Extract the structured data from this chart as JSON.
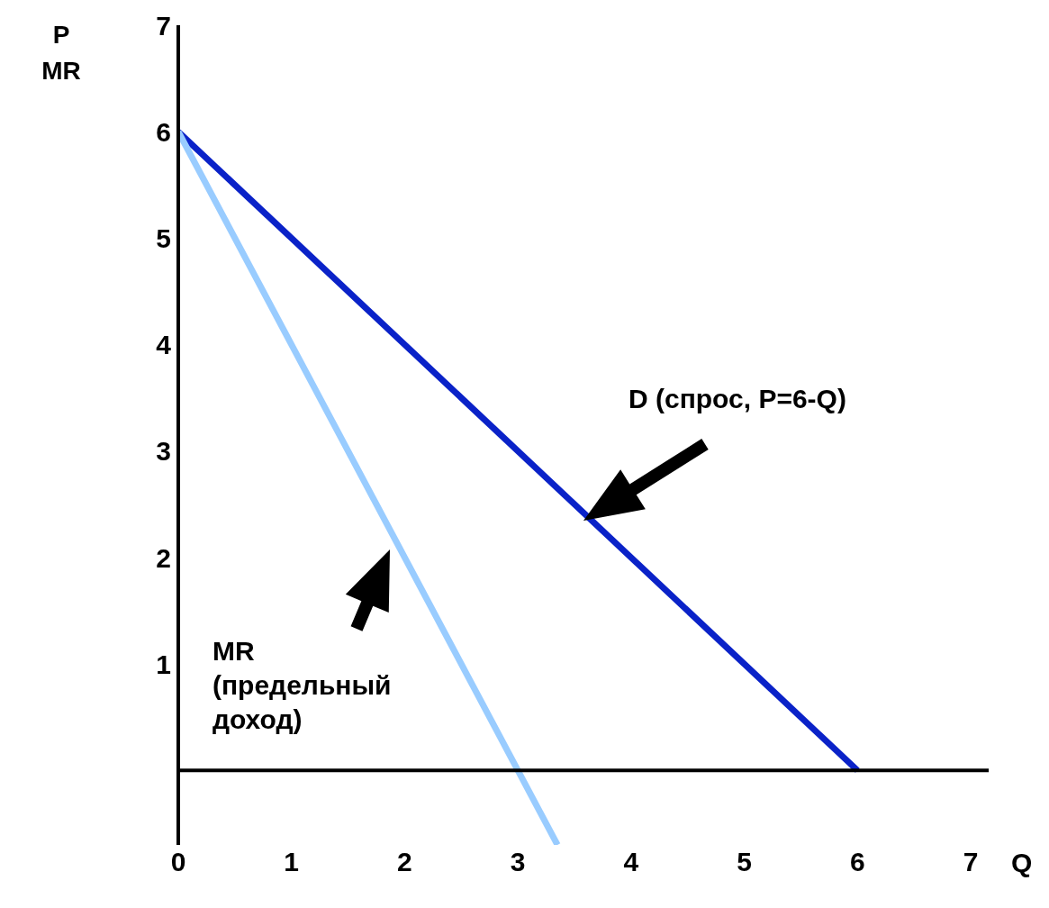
{
  "chart_data": {
    "type": "line",
    "xlabel": "Q",
    "ylabel": "P\nMR",
    "xlim": [
      0,
      7
    ],
    "xticks": [
      0,
      1,
      2,
      3,
      4,
      5,
      6,
      7
    ],
    "ylim": [
      -0.7,
      7
    ],
    "yticks": [
      1,
      2,
      3,
      4,
      5,
      6,
      7
    ],
    "marker": "none",
    "line_style": "solid",
    "series": [
      {
        "color": "#0a22c8",
        "x": [
          0,
          6
        ],
        "values": [
          6,
          0
        ]
      },
      {
        "color": "#99ccff",
        "x": [
          0,
          3.35
        ],
        "values": [
          6,
          -0.7
        ]
      }
    ],
    "annotations": [
      "D (спрос, P=6-Q)",
      "MR\n(предельный\nдоход)"
    ]
  }
}
